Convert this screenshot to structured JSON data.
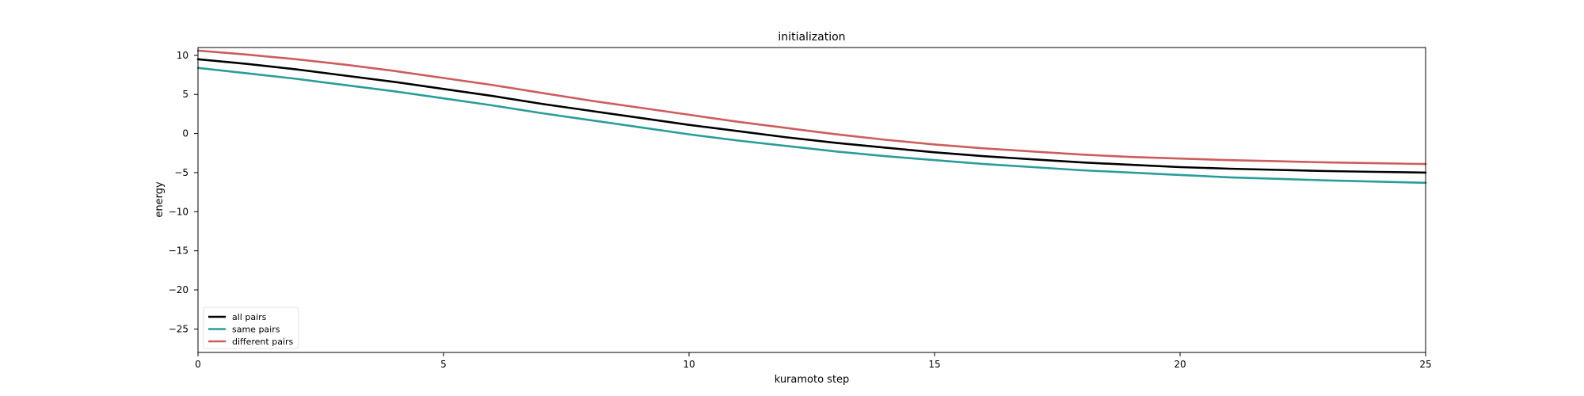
{
  "chart_data": {
    "type": "line",
    "title": "initialization",
    "xlabel": "kuramoto step",
    "ylabel": "energy",
    "xlim": [
      0,
      25
    ],
    "ylim": [
      -28,
      11
    ],
    "xticks": [
      0,
      5,
      10,
      15,
      20,
      25
    ],
    "yticks": [
      10,
      5,
      0,
      -5,
      -10,
      -15,
      -20,
      -25
    ],
    "grid": false,
    "legend_position": "lower-left",
    "x": [
      0,
      1,
      2,
      3,
      4,
      5,
      6,
      7,
      8,
      9,
      10,
      11,
      12,
      13,
      14,
      15,
      16,
      17,
      18,
      19,
      20,
      21,
      22,
      23,
      24,
      25
    ],
    "series": [
      {
        "name": "all pairs",
        "color": "#000000",
        "values": [
          9.5,
          8.9,
          8.2,
          7.4,
          6.6,
          5.7,
          4.8,
          3.8,
          2.9,
          2.0,
          1.1,
          0.3,
          -0.5,
          -1.2,
          -1.8,
          -2.4,
          -2.9,
          -3.3,
          -3.7,
          -4.0,
          -4.3,
          -4.5,
          -4.65,
          -4.8,
          -4.9,
          -5.0
        ]
      },
      {
        "name": "same pairs",
        "color": "#2a9d99",
        "values": [
          8.4,
          7.7,
          7.0,
          6.2,
          5.4,
          4.5,
          3.6,
          2.6,
          1.7,
          0.8,
          -0.1,
          -0.9,
          -1.6,
          -2.3,
          -2.9,
          -3.4,
          -3.9,
          -4.3,
          -4.7,
          -5.0,
          -5.3,
          -5.6,
          -5.8,
          -6.0,
          -6.15,
          -6.3
        ]
      },
      {
        "name": "different pairs",
        "color": "#cd5c5c",
        "values": [
          10.6,
          10.1,
          9.5,
          8.8,
          8.0,
          7.1,
          6.2,
          5.2,
          4.2,
          3.3,
          2.4,
          1.5,
          0.7,
          -0.1,
          -0.8,
          -1.4,
          -1.9,
          -2.3,
          -2.7,
          -3.0,
          -3.2,
          -3.4,
          -3.55,
          -3.7,
          -3.8,
          -3.9
        ]
      }
    ]
  }
}
